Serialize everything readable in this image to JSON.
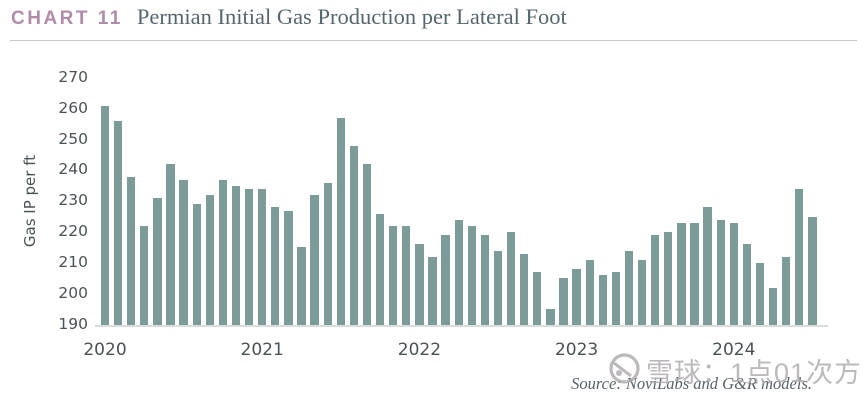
{
  "header": {
    "chart_label": "CHART 11",
    "title": "Permian Initial Gas Production per Lateral Foot",
    "accent_color": "#b18ca6"
  },
  "chart_data": {
    "type": "bar",
    "title": "Permian Initial Gas Production per Lateral Foot",
    "ylabel": "Gas IP per ft",
    "xlabel": "",
    "ylim": [
      190,
      270
    ],
    "yticks": [
      270,
      260,
      250,
      240,
      230,
      220,
      210,
      200,
      190
    ],
    "x_tick_labels": [
      "2020",
      "2021",
      "2022",
      "2023",
      "2024"
    ],
    "frequency": "monthly",
    "start": "2020-01",
    "end": "2024-07",
    "grid": false,
    "legend": false,
    "bar_color": "#7c9b99",
    "values": [
      261,
      256,
      238,
      222,
      231,
      242,
      237,
      229,
      232,
      237,
      235,
      234,
      234,
      228,
      227,
      215,
      232,
      236,
      257,
      248,
      242,
      226,
      222,
      222,
      216,
      212,
      219,
      224,
      222,
      219,
      214,
      220,
      213,
      207,
      195,
      205,
      208,
      211,
      206,
      207,
      214,
      211,
      219,
      220,
      223,
      223,
      228,
      224,
      223,
      216,
      210,
      202,
      212,
      234,
      225
    ]
  },
  "footer": {
    "source": "Source: NoviLabs and G&R models.",
    "watermark_text": "雪球：1点01次方"
  }
}
